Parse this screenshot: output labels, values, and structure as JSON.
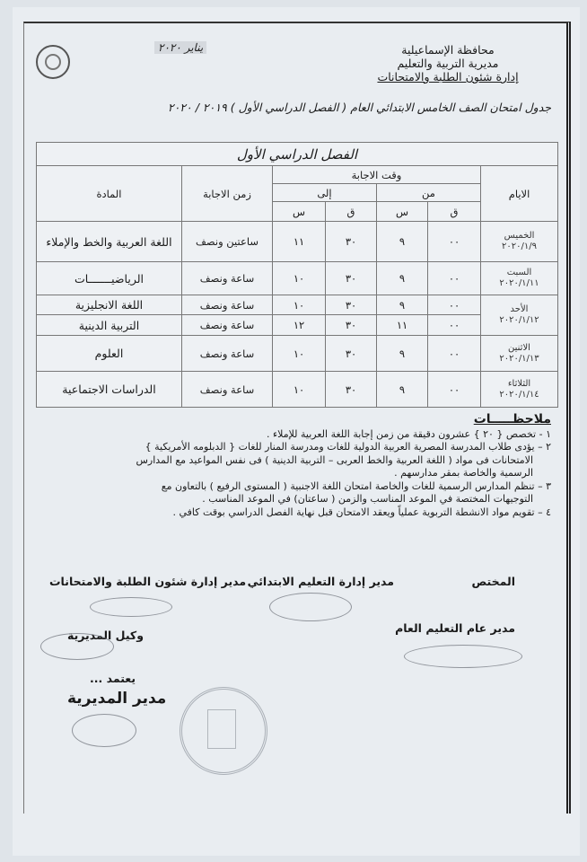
{
  "header": {
    "lines": [
      "محافظة الإسماعيلية",
      "مديرية التربية والتعليم",
      "إدارة شئون الطلبة والامتحانات"
    ],
    "date": "يناير ٢٠٢٠"
  },
  "title": "جدول امتحان الصف الخامس  الابتدائي العام ( الفصل الدراسي الأول ) ٢٠١٩ / ٢٠٢٠",
  "table": {
    "caption": "الفصل الدراسي الأول",
    "headers": {
      "days": "الايام",
      "answer_time": "وقت الاجابة",
      "from": "من",
      "to": "إلى",
      "minute": "ق",
      "hour": "س",
      "duration": "زمن الاجابة",
      "subject": "المادة"
    },
    "rows": [
      {
        "day": "الخميس",
        "date": "٢٠٢٠/١/٩",
        "exams": [
          {
            "from_m": "٠٠",
            "from_h": "٩",
            "to_m": "٣٠",
            "to_h": "١١",
            "duration": "ساعتين ونصف",
            "subject": "اللغة العربية والخط والإملاء"
          }
        ]
      },
      {
        "day": "السبت",
        "date": "٢٠٢٠/١/١١",
        "exams": [
          {
            "from_m": "٠٠",
            "from_h": "٩",
            "to_m": "٣٠",
            "to_h": "١٠",
            "duration": "ساعة ونصف",
            "subject": "الرياضيـــــــات"
          }
        ]
      },
      {
        "day": "الأحد",
        "date": "٢٠٢٠/١/١٢",
        "exams": [
          {
            "from_m": "٠٠",
            "from_h": "٩",
            "to_m": "٣٠",
            "to_h": "١٠",
            "duration": "ساعة ونصف",
            "subject": "اللغة الانجليزية"
          },
          {
            "from_m": "٠٠",
            "from_h": "١١",
            "to_m": "٣٠",
            "to_h": "١٢",
            "duration": "ساعة ونصف",
            "subject": "التربية الدينية"
          }
        ]
      },
      {
        "day": "الاثنين",
        "date": "٢٠٢٠/١/١٣",
        "exams": [
          {
            "from_m": "٠٠",
            "from_h": "٩",
            "to_m": "٣٠",
            "to_h": "١٠",
            "duration": "ساعة ونصف",
            "subject": "العلوم"
          }
        ]
      },
      {
        "day": "الثلاثاء",
        "date": "٢٠٢٠/١/١٤",
        "exams": [
          {
            "from_m": "٠٠",
            "from_h": "٩",
            "to_m": "٣٠",
            "to_h": "١٠",
            "duration": "ساعة ونصف",
            "subject": "الدراسات الاجتماعية"
          }
        ]
      }
    ]
  },
  "notes": {
    "heading": "ملاحظـــــات",
    "items": [
      "١ - تخصص { ٢٠ }  عشرون دقيقة من زمن إجابة اللغة العربية للإملاء .",
      "٢ – يؤدى طلاب المدرسة المصرية العربية الدولية للغات ومدرسة المنار للغات { الدبلومه الأمريكية }",
      "الامتحانات فى مواد ( اللغة العربية والخط العربى – التربية الدينية ) فى نفس المواعيد مع  المدارس",
      "الرسمية  والخاصة بمقر مدارسهم .",
      "٣ – تنظم المدارس  الرسمية  للغات  والخاصة امتحان اللغة الاجنبية ( المستوى الرفيع ) بالتعاون مع",
      "التوجيهات المختصة في الموعد المناسب والزمن ( ساعتان) في الموعد المناسب .",
      "٤ – تقويم مواد الانشطة التربوية عملياً ويعقد الامتحان قبل نهاية الفصل الدراسي بوقت كافي ."
    ]
  },
  "signatures": {
    "specialist": "المختص",
    "primary_director": "مدير إدارة التعليم الابتدائي",
    "exams_director": "مدير إدارة شئون الطلبة والامتحانات",
    "general_director": "مدير عام التعليم العام",
    "deputy": "وكيل المديرية",
    "approved": "يعتمد ...",
    "directorate_director": "مدير المديرية"
  }
}
